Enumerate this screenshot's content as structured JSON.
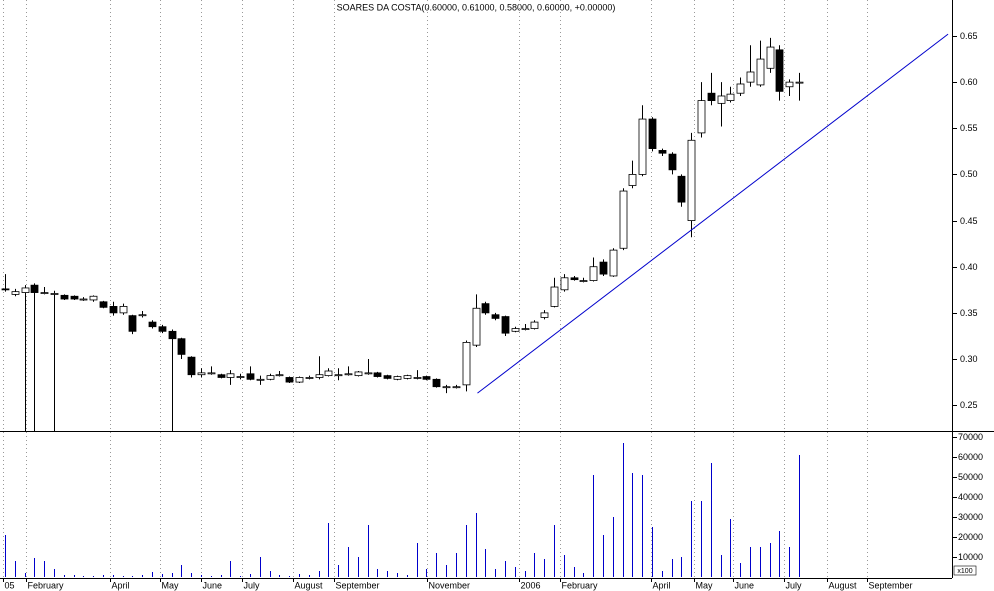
{
  "chart_data": [
    {
      "type": "candlestick",
      "title": "SOARES DA COSTA(0.60000, 0.61000, 0.58000, 0.60000, +0.00000)",
      "x": [
        0,
        1,
        2,
        3,
        4,
        5,
        6,
        7,
        8,
        9,
        10,
        11,
        12,
        13,
        14,
        15,
        16,
        17,
        18,
        19,
        20,
        21,
        22,
        23,
        24,
        25,
        26,
        27,
        28,
        29,
        30,
        31,
        32,
        33,
        34,
        35,
        36,
        37,
        38,
        39,
        40,
        41,
        42,
        43,
        44,
        45,
        46,
        47,
        48,
        49,
        50,
        51,
        52,
        53,
        54,
        55,
        56,
        57,
        58,
        59,
        60,
        61,
        62,
        63,
        64,
        65,
        66,
        67,
        68,
        69,
        70,
        71,
        72,
        73,
        74,
        75,
        76,
        77,
        78,
        79,
        80,
        81
      ],
      "open": [
        0.376,
        0.37,
        0.372,
        0.38,
        0.372,
        0.371,
        0.369,
        0.368,
        0.365,
        0.364,
        0.362,
        0.357,
        0.35,
        0.347,
        0.348,
        0.34,
        0.335,
        0.33,
        0.322,
        0.302,
        0.283,
        0.285,
        0.283,
        0.28,
        0.281,
        0.284,
        0.278,
        0.278,
        0.283,
        0.28,
        0.275,
        0.28,
        0.28,
        0.282,
        0.283,
        0.284,
        0.282,
        0.285,
        0.285,
        0.282,
        0.278,
        0.279,
        0.28,
        0.281,
        0.278,
        0.27,
        0.27,
        0.272,
        0.315,
        0.36,
        0.348,
        0.346,
        0.33,
        0.333,
        0.333,
        0.345,
        0.357,
        0.375,
        0.388,
        0.385,
        0.385,
        0.405,
        0.39,
        0.42,
        0.488,
        0.5,
        0.56,
        0.526,
        0.522,
        0.498,
        0.45,
        0.545,
        0.588,
        0.577,
        0.58,
        0.588,
        0.6,
        0.597,
        0.615,
        0.635,
        0.595,
        0.6
      ],
      "high": [
        0.392,
        0.376,
        0.38,
        0.382,
        0.378,
        0.374,
        0.37,
        0.369,
        0.367,
        0.369,
        0.363,
        0.362,
        0.36,
        0.348,
        0.352,
        0.342,
        0.337,
        0.332,
        0.323,
        0.303,
        0.29,
        0.292,
        0.284,
        0.288,
        0.284,
        0.292,
        0.282,
        0.284,
        0.287,
        0.281,
        0.281,
        0.282,
        0.303,
        0.29,
        0.29,
        0.292,
        0.287,
        0.3,
        0.286,
        0.283,
        0.282,
        0.283,
        0.288,
        0.282,
        0.279,
        0.272,
        0.272,
        0.32,
        0.37,
        0.362,
        0.35,
        0.347,
        0.335,
        0.338,
        0.342,
        0.353,
        0.388,
        0.392,
        0.39,
        0.388,
        0.41,
        0.408,
        0.42,
        0.485,
        0.515,
        0.575,
        0.562,
        0.528,
        0.524,
        0.5,
        0.545,
        0.6,
        0.61,
        0.6,
        0.595,
        0.605,
        0.64,
        0.645,
        0.648,
        0.64,
        0.603,
        0.61
      ],
      "low": [
        0.373,
        0.368,
        0.222,
        0.222,
        0.37,
        0.222,
        0.364,
        0.364,
        0.363,
        0.362,
        0.355,
        0.347,
        0.348,
        0.327,
        0.345,
        0.333,
        0.328,
        0.222,
        0.3,
        0.28,
        0.28,
        0.283,
        0.279,
        0.272,
        0.278,
        0.277,
        0.272,
        0.277,
        0.281,
        0.274,
        0.274,
        0.278,
        0.278,
        0.281,
        0.277,
        0.282,
        0.281,
        0.283,
        0.28,
        0.278,
        0.277,
        0.278,
        0.278,
        0.277,
        0.269,
        0.263,
        0.268,
        0.265,
        0.313,
        0.348,
        0.342,
        0.325,
        0.329,
        0.331,
        0.332,
        0.343,
        0.356,
        0.373,
        0.385,
        0.383,
        0.384,
        0.39,
        0.389,
        0.418,
        0.485,
        0.498,
        0.525,
        0.52,
        0.5,
        0.465,
        0.432,
        0.54,
        0.575,
        0.552,
        0.578,
        0.585,
        0.595,
        0.595,
        0.61,
        0.58,
        0.585,
        0.58
      ],
      "close": [
        0.375,
        0.373,
        0.377,
        0.372,
        0.372,
        0.371,
        0.365,
        0.365,
        0.365,
        0.368,
        0.356,
        0.35,
        0.357,
        0.33,
        0.348,
        0.335,
        0.33,
        0.322,
        0.305,
        0.283,
        0.285,
        0.285,
        0.28,
        0.284,
        0.281,
        0.278,
        0.278,
        0.282,
        0.283,
        0.275,
        0.28,
        0.28,
        0.283,
        0.287,
        0.283,
        0.284,
        0.286,
        0.285,
        0.281,
        0.279,
        0.281,
        0.282,
        0.28,
        0.278,
        0.27,
        0.27,
        0.27,
        0.318,
        0.355,
        0.35,
        0.344,
        0.328,
        0.333,
        0.333,
        0.34,
        0.35,
        0.378,
        0.388,
        0.386,
        0.385,
        0.4,
        0.392,
        0.418,
        0.482,
        0.5,
        0.56,
        0.528,
        0.523,
        0.505,
        0.47,
        0.537,
        0.58,
        0.58,
        0.585,
        0.587,
        0.598,
        0.611,
        0.625,
        0.638,
        0.59,
        0.6,
        0.6
      ],
      "trendline": {
        "x": [
          48.2,
          96.2
        ],
        "y": [
          0.263,
          0.652
        ],
        "color": "#0000cc"
      },
      "xlim": [
        -0.5,
        96.6
      ],
      "ylim": [
        0.222,
        0.689
      ],
      "yticks": [
        0.25,
        {
          "value": 0.3,
          "label": "0.30"
        },
        0.35,
        {
          "value": 0.4,
          "label": "0.40"
        },
        0.45,
        {
          "value": 0.5,
          "label": "0.50"
        },
        0.55,
        {
          "value": 0.6,
          "label": "0.60"
        },
        0.65
      ]
    },
    {
      "type": "bar",
      "color": "#0000cc",
      "unit_label": "x100",
      "values": [
        21000,
        8000,
        2000,
        9500,
        8000,
        4000,
        1000,
        1000,
        500,
        500,
        1000,
        1000,
        500,
        500,
        1000,
        2500,
        1500,
        2000,
        6000,
        2000,
        1000,
        500,
        1000,
        8000,
        500,
        1500,
        10000,
        3000,
        1000,
        500,
        1500,
        1000,
        3000,
        27000,
        6000,
        15000,
        10000,
        26000,
        4000,
        3000,
        2000,
        1000,
        17000,
        4000,
        12000,
        6000,
        12000,
        26000,
        32000,
        14000,
        4000,
        8000,
        5000,
        3000,
        12000,
        9000,
        26000,
        11000,
        5000,
        2000,
        51000,
        21000,
        30000,
        67000,
        52000,
        51000,
        25000,
        3000,
        9000,
        10000,
        38000,
        38000,
        57000,
        11000,
        29000,
        7000,
        15000,
        15000,
        17000,
        23000,
        15000,
        61000
      ],
      "ylim": [
        0,
        72500
      ],
      "yticks": [
        10000,
        20000,
        30000,
        40000,
        50000,
        60000,
        70000
      ],
      "xticks": [
        {
          "value": -0.2,
          "label": "05"
        },
        {
          "value": 2.2,
          "label": "February"
        },
        {
          "value": 10.7,
          "label": "April"
        },
        {
          "value": 15.8,
          "label": "May"
        },
        {
          "value": 20,
          "label": "June"
        },
        {
          "value": 24.2,
          "label": "July"
        },
        {
          "value": 29.4,
          "label": "August"
        },
        {
          "value": 33.6,
          "label": "September"
        },
        {
          "value": 43.1,
          "label": "November"
        },
        {
          "value": 52.4,
          "label": "2006"
        },
        {
          "value": 56.6,
          "label": "February"
        },
        {
          "value": 65.9,
          "label": "April"
        },
        {
          "value": 70.3,
          "label": "May"
        },
        {
          "value": 74.3,
          "label": "June"
        },
        {
          "value": 79.5,
          "label": "July"
        },
        {
          "value": 83.8,
          "label": "August"
        },
        {
          "value": 87.9,
          "label": "September"
        }
      ]
    }
  ]
}
